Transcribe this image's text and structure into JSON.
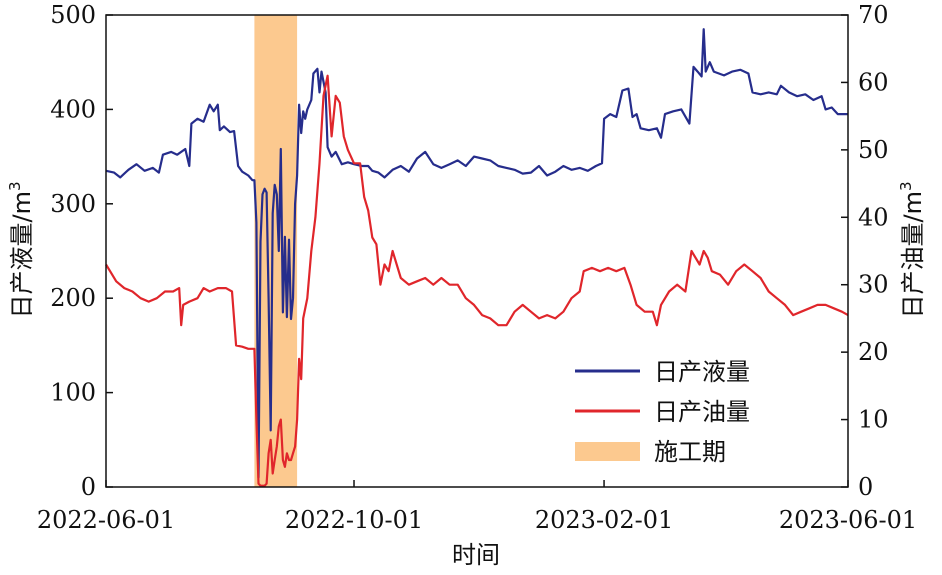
{
  "chart_data": {
    "type": "line",
    "xlabel": "时间",
    "ylabel_left": "日产液量/m",
    "ylabel_right": "日产油量/m",
    "ylabel_unit_sup": "3",
    "x_ticks": [
      "2022-06-01",
      "2022-10-01",
      "2023-02-01",
      "2023-06-01"
    ],
    "x_range": [
      "2022-06-01",
      "2023-06-01"
    ],
    "ylim_left": [
      0,
      500
    ],
    "ylim_right": [
      0,
      70
    ],
    "y_ticks_left": [
      "0",
      "100",
      "200",
      "300",
      "400",
      "500"
    ],
    "y_ticks_right": [
      "0",
      "10",
      "20",
      "30",
      "40",
      "50",
      "60",
      "70"
    ],
    "grid": false,
    "legend_position": "bottom-right",
    "construction_period": {
      "name": "施工期",
      "start": "2022-08-13",
      "end": "2022-09-03",
      "color": "#fcc98f"
    },
    "series": [
      {
        "name": "日产液量",
        "axis": "left",
        "color": "#262d8c",
        "points": [
          [
            "2022-06-01",
            335
          ],
          [
            "2022-06-05",
            333
          ],
          [
            "2022-06-08",
            328
          ],
          [
            "2022-06-12",
            336
          ],
          [
            "2022-06-16",
            342
          ],
          [
            "2022-06-20",
            335
          ],
          [
            "2022-06-24",
            338
          ],
          [
            "2022-06-27",
            333
          ],
          [
            "2022-06-29",
            352
          ],
          [
            "2022-07-03",
            355
          ],
          [
            "2022-07-06",
            352
          ],
          [
            "2022-07-10",
            358
          ],
          [
            "2022-07-12",
            340
          ],
          [
            "2022-07-13",
            385
          ],
          [
            "2022-07-16",
            390
          ],
          [
            "2022-07-19",
            387
          ],
          [
            "2022-07-22",
            405
          ],
          [
            "2022-07-24",
            398
          ],
          [
            "2022-07-26",
            405
          ],
          [
            "2022-07-27",
            378
          ],
          [
            "2022-07-29",
            382
          ],
          [
            "2022-08-01",
            376
          ],
          [
            "2022-08-03",
            377
          ],
          [
            "2022-08-05",
            340
          ],
          [
            "2022-08-07",
            334
          ],
          [
            "2022-08-10",
            330
          ],
          [
            "2022-08-12",
            325
          ],
          [
            "2022-08-13",
            325
          ],
          [
            "2022-08-14",
            280
          ],
          [
            "2022-08-15",
            10
          ],
          [
            "2022-08-16",
            260
          ],
          [
            "2022-08-17",
            310
          ],
          [
            "2022-08-18",
            316
          ],
          [
            "2022-08-19",
            312
          ],
          [
            "2022-08-20",
            200
          ],
          [
            "2022-08-21",
            60
          ],
          [
            "2022-08-22",
            290
          ],
          [
            "2022-08-23",
            320
          ],
          [
            "2022-08-24",
            310
          ],
          [
            "2022-08-25",
            250
          ],
          [
            "2022-08-26",
            358
          ],
          [
            "2022-08-27",
            185
          ],
          [
            "2022-08-28",
            265
          ],
          [
            "2022-08-29",
            180
          ],
          [
            "2022-08-30",
            262
          ],
          [
            "2022-08-31",
            178
          ],
          [
            "2022-09-01",
            200
          ],
          [
            "2022-09-02",
            300
          ],
          [
            "2022-09-03",
            330
          ],
          [
            "2022-09-04",
            405
          ],
          [
            "2022-09-05",
            375
          ],
          [
            "2022-09-06",
            398
          ],
          [
            "2022-09-07",
            390
          ],
          [
            "2022-09-08",
            400
          ],
          [
            "2022-09-10",
            410
          ],
          [
            "2022-09-11",
            438
          ],
          [
            "2022-09-13",
            443
          ],
          [
            "2022-09-14",
            418
          ],
          [
            "2022-09-15",
            440
          ],
          [
            "2022-09-17",
            418
          ],
          [
            "2022-09-18",
            360
          ],
          [
            "2022-09-20",
            350
          ],
          [
            "2022-09-22",
            355
          ],
          [
            "2022-09-25",
            342
          ],
          [
            "2022-09-28",
            344
          ],
          [
            "2022-10-01",
            342
          ],
          [
            "2022-10-05",
            340
          ],
          [
            "2022-10-08",
            340
          ],
          [
            "2022-10-10",
            335
          ],
          [
            "2022-10-13",
            333
          ],
          [
            "2022-10-16",
            328
          ],
          [
            "2022-10-20",
            336
          ],
          [
            "2022-10-24",
            340
          ],
          [
            "2022-10-28",
            334
          ],
          [
            "2022-11-01",
            348
          ],
          [
            "2022-11-05",
            355
          ],
          [
            "2022-11-09",
            342
          ],
          [
            "2022-11-13",
            338
          ],
          [
            "2022-11-17",
            342
          ],
          [
            "2022-11-21",
            346
          ],
          [
            "2022-11-25",
            340
          ],
          [
            "2022-11-29",
            350
          ],
          [
            "2022-12-03",
            348
          ],
          [
            "2022-12-07",
            346
          ],
          [
            "2022-12-11",
            340
          ],
          [
            "2022-12-15",
            338
          ],
          [
            "2022-12-19",
            336
          ],
          [
            "2022-12-23",
            332
          ],
          [
            "2022-12-27",
            333
          ],
          [
            "2022-12-31",
            340
          ],
          [
            "2023-01-04",
            330
          ],
          [
            "2023-01-08",
            334
          ],
          [
            "2023-01-12",
            340
          ],
          [
            "2023-01-16",
            336
          ],
          [
            "2023-01-20",
            338
          ],
          [
            "2023-01-24",
            335
          ],
          [
            "2023-01-28",
            340
          ],
          [
            "2023-01-31",
            343
          ],
          [
            "2023-02-01",
            390
          ],
          [
            "2023-02-04",
            395
          ],
          [
            "2023-02-07",
            392
          ],
          [
            "2023-02-10",
            420
          ],
          [
            "2023-02-13",
            422
          ],
          [
            "2023-02-15",
            392
          ],
          [
            "2023-02-17",
            395
          ],
          [
            "2023-02-19",
            380
          ],
          [
            "2023-02-23",
            378
          ],
          [
            "2023-02-27",
            380
          ],
          [
            "2023-03-01",
            370
          ],
          [
            "2023-03-03",
            395
          ],
          [
            "2023-03-07",
            398
          ],
          [
            "2023-03-11",
            400
          ],
          [
            "2023-03-15",
            385
          ],
          [
            "2023-03-17",
            445
          ],
          [
            "2023-03-19",
            440
          ],
          [
            "2023-03-21",
            435
          ],
          [
            "2023-03-22",
            485
          ],
          [
            "2023-03-23",
            440
          ],
          [
            "2023-03-25",
            450
          ],
          [
            "2023-03-27",
            440
          ],
          [
            "2023-04-01",
            436
          ],
          [
            "2023-04-05",
            440
          ],
          [
            "2023-04-09",
            442
          ],
          [
            "2023-04-13",
            438
          ],
          [
            "2023-04-15",
            418
          ],
          [
            "2023-04-19",
            416
          ],
          [
            "2023-04-23",
            418
          ],
          [
            "2023-04-27",
            416
          ],
          [
            "2023-04-29",
            425
          ],
          [
            "2023-05-03",
            418
          ],
          [
            "2023-05-07",
            414
          ],
          [
            "2023-05-11",
            416
          ],
          [
            "2023-05-15",
            410
          ],
          [
            "2023-05-19",
            414
          ],
          [
            "2023-05-21",
            400
          ],
          [
            "2023-05-24",
            402
          ],
          [
            "2023-05-27",
            395
          ],
          [
            "2023-06-01",
            395
          ]
        ]
      },
      {
        "name": "日产油量",
        "axis": "right",
        "color": "#e0262b",
        "points": [
          [
            "2022-06-01",
            33
          ],
          [
            "2022-06-03",
            32
          ],
          [
            "2022-06-06",
            30.5
          ],
          [
            "2022-06-10",
            29.5
          ],
          [
            "2022-06-14",
            29
          ],
          [
            "2022-06-18",
            28
          ],
          [
            "2022-06-22",
            27.5
          ],
          [
            "2022-06-26",
            28
          ],
          [
            "2022-06-30",
            29
          ],
          [
            "2022-07-04",
            29
          ],
          [
            "2022-07-07",
            29.5
          ],
          [
            "2022-07-08",
            24
          ],
          [
            "2022-07-09",
            27
          ],
          [
            "2022-07-12",
            27.5
          ],
          [
            "2022-07-16",
            28
          ],
          [
            "2022-07-19",
            29.5
          ],
          [
            "2022-07-22",
            29
          ],
          [
            "2022-07-26",
            29.5
          ],
          [
            "2022-07-30",
            29.5
          ],
          [
            "2022-08-02",
            29
          ],
          [
            "2022-08-04",
            21
          ],
          [
            "2022-08-07",
            20.8
          ],
          [
            "2022-08-10",
            20.5
          ],
          [
            "2022-08-13",
            20.5
          ],
          [
            "2022-08-14",
            10
          ],
          [
            "2022-08-15",
            0.5
          ],
          [
            "2022-08-16",
            0.2
          ],
          [
            "2022-08-18",
            0.2
          ],
          [
            "2022-08-19",
            0.5
          ],
          [
            "2022-08-20",
            5
          ],
          [
            "2022-08-21",
            7
          ],
          [
            "2022-08-22",
            2
          ],
          [
            "2022-08-23",
            4
          ],
          [
            "2022-08-24",
            6
          ],
          [
            "2022-08-25",
            9
          ],
          [
            "2022-08-26",
            10
          ],
          [
            "2022-08-27",
            4
          ],
          [
            "2022-08-28",
            3
          ],
          [
            "2022-08-29",
            5
          ],
          [
            "2022-08-30",
            4
          ],
          [
            "2022-08-31",
            4
          ],
          [
            "2022-09-01",
            5
          ],
          [
            "2022-09-02",
            6
          ],
          [
            "2022-09-03",
            10
          ],
          [
            "2022-09-04",
            19
          ],
          [
            "2022-09-05",
            16
          ],
          [
            "2022-09-06",
            25
          ],
          [
            "2022-09-08",
            28
          ],
          [
            "2022-09-10",
            35
          ],
          [
            "2022-09-12",
            40
          ],
          [
            "2022-09-14",
            48
          ],
          [
            "2022-09-16",
            58
          ],
          [
            "2022-09-18",
            61
          ],
          [
            "2022-09-20",
            52
          ],
          [
            "2022-09-22",
            58
          ],
          [
            "2022-09-24",
            57
          ],
          [
            "2022-09-26",
            52
          ],
          [
            "2022-09-28",
            50
          ],
          [
            "2022-10-01",
            48
          ],
          [
            "2022-10-04",
            48
          ],
          [
            "2022-10-06",
            43
          ],
          [
            "2022-10-08",
            41
          ],
          [
            "2022-10-10",
            37
          ],
          [
            "2022-10-12",
            36
          ],
          [
            "2022-10-14",
            30
          ],
          [
            "2022-10-16",
            33
          ],
          [
            "2022-10-18",
            32
          ],
          [
            "2022-10-20",
            35
          ],
          [
            "2022-10-22",
            33
          ],
          [
            "2022-10-24",
            31
          ],
          [
            "2022-10-28",
            30
          ],
          [
            "2022-11-01",
            30.5
          ],
          [
            "2022-11-05",
            31
          ],
          [
            "2022-11-09",
            30
          ],
          [
            "2022-11-13",
            31
          ],
          [
            "2022-11-17",
            30
          ],
          [
            "2022-11-21",
            30
          ],
          [
            "2022-11-25",
            28
          ],
          [
            "2022-11-29",
            27
          ],
          [
            "2022-12-03",
            25.5
          ],
          [
            "2022-12-07",
            25
          ],
          [
            "2022-12-11",
            24
          ],
          [
            "2022-12-15",
            24
          ],
          [
            "2022-12-19",
            26
          ],
          [
            "2022-12-23",
            27
          ],
          [
            "2022-12-27",
            26
          ],
          [
            "2022-12-31",
            25
          ],
          [
            "2023-01-04",
            25.5
          ],
          [
            "2023-01-08",
            25
          ],
          [
            "2023-01-12",
            26
          ],
          [
            "2023-01-16",
            28
          ],
          [
            "2023-01-20",
            29
          ],
          [
            "2023-01-22",
            32
          ],
          [
            "2023-01-26",
            32.5
          ],
          [
            "2023-01-30",
            32
          ],
          [
            "2023-02-03",
            32.5
          ],
          [
            "2023-02-07",
            32
          ],
          [
            "2023-02-11",
            32.5
          ],
          [
            "2023-02-14",
            30
          ],
          [
            "2023-02-17",
            27
          ],
          [
            "2023-02-21",
            26
          ],
          [
            "2023-02-25",
            26
          ],
          [
            "2023-02-27",
            24
          ],
          [
            "2023-03-01",
            27
          ],
          [
            "2023-03-05",
            29
          ],
          [
            "2023-03-09",
            30
          ],
          [
            "2023-03-13",
            29
          ],
          [
            "2023-03-16",
            35
          ],
          [
            "2023-03-20",
            33
          ],
          [
            "2023-03-22",
            35
          ],
          [
            "2023-03-24",
            34
          ],
          [
            "2023-03-26",
            32
          ],
          [
            "2023-03-30",
            31.5
          ],
          [
            "2023-04-03",
            30
          ],
          [
            "2023-04-07",
            32
          ],
          [
            "2023-04-11",
            33
          ],
          [
            "2023-04-15",
            32
          ],
          [
            "2023-04-19",
            31
          ],
          [
            "2023-04-23",
            29
          ],
          [
            "2023-04-27",
            28
          ],
          [
            "2023-05-01",
            27
          ],
          [
            "2023-05-05",
            25.5
          ],
          [
            "2023-05-09",
            26
          ],
          [
            "2023-05-13",
            26.5
          ],
          [
            "2023-05-17",
            27
          ],
          [
            "2023-05-21",
            27
          ],
          [
            "2023-05-25",
            26.5
          ],
          [
            "2023-05-29",
            26
          ],
          [
            "2023-06-01",
            25.5
          ]
        ]
      }
    ]
  }
}
